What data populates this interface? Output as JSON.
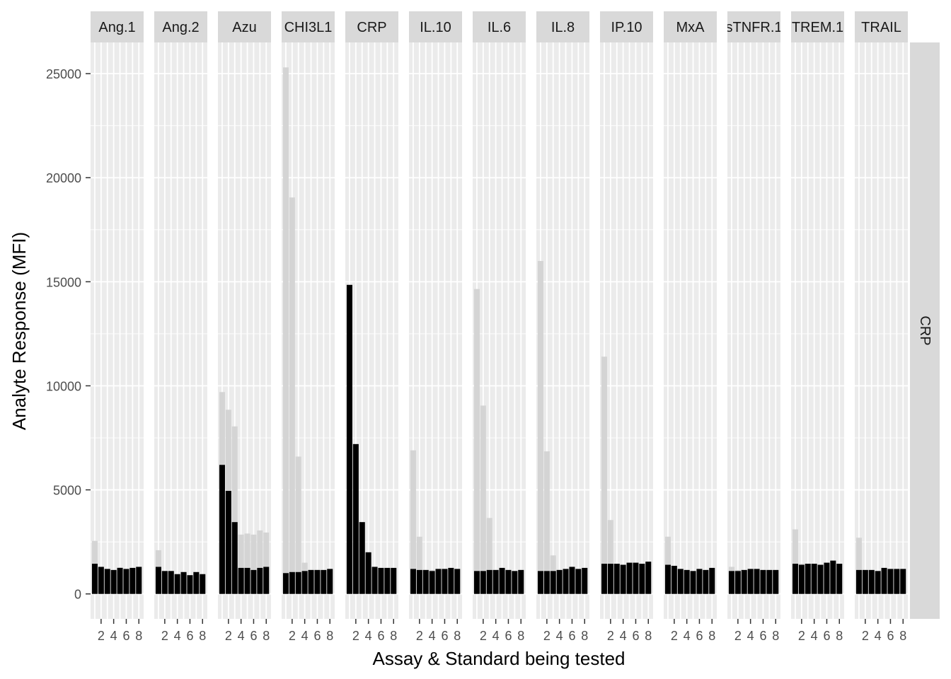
{
  "chart_data": {
    "type": "bar",
    "xlabel": "Assay & Standard being tested",
    "ylabel": "Analyte Response (MFI)",
    "row_strip": "CRP",
    "ylim": [
      -1200,
      26500
    ],
    "y_ticks": [
      0,
      5000,
      10000,
      15000,
      20000,
      25000
    ],
    "y_tick_labels": [
      "0",
      "5000",
      "10000",
      "15000",
      "20000",
      "25000"
    ],
    "x": [
      1,
      2,
      3,
      4,
      5,
      6,
      7,
      8
    ],
    "x_tick_labels": [
      "2",
      "4",
      "6",
      "8"
    ],
    "x_ticks": [
      2,
      4,
      6,
      8
    ],
    "grid": true,
    "colors": {
      "panel_bg": "#ebebeb",
      "grid": "#ffffff",
      "strip_bg": "#d9d9d9",
      "background_bar": "#d4d4d4",
      "foreground_bar": "#000000"
    },
    "panels": [
      {
        "name": "Ang.1",
        "background": [
          2550,
          1250,
          1200,
          1150,
          1280,
          1180,
          1250,
          1300
        ],
        "foreground": [
          1450,
          1300,
          1200,
          1150,
          1250,
          1200,
          1250,
          1300
        ]
      },
      {
        "name": "Ang.2",
        "background": [
          2100,
          1100,
          1100,
          950,
          1050,
          900,
          1050,
          950
        ],
        "foreground": [
          1300,
          1100,
          1100,
          950,
          1050,
          900,
          1050,
          950
        ]
      },
      {
        "name": "Azu",
        "background": [
          9700,
          8850,
          8050,
          2850,
          2900,
          2850,
          3050,
          2950
        ],
        "foreground": [
          6200,
          4950,
          3450,
          1250,
          1250,
          1150,
          1250,
          1300
        ]
      },
      {
        "name": "CHI3L1",
        "background": [
          25300,
          19050,
          6600,
          1500,
          1150,
          1150,
          1150,
          1200
        ],
        "foreground": [
          1000,
          1050,
          1050,
          1100,
          1150,
          1150,
          1150,
          1200
        ]
      },
      {
        "name": "CRP",
        "background": [
          14850,
          7200,
          3450,
          2000,
          1300,
          1250,
          1250,
          1250
        ],
        "foreground": [
          14850,
          7200,
          3450,
          2000,
          1300,
          1250,
          1250,
          1250
        ]
      },
      {
        "name": "IL.10",
        "background": [
          6900,
          2750,
          1150,
          1150,
          1200,
          1200,
          1250,
          1200
        ],
        "foreground": [
          1200,
          1150,
          1150,
          1100,
          1200,
          1200,
          1250,
          1200
        ]
      },
      {
        "name": "IL.6",
        "background": [
          14650,
          9050,
          3650,
          1150,
          1250,
          1150,
          1100,
          1150
        ],
        "foreground": [
          1100,
          1100,
          1150,
          1150,
          1250,
          1150,
          1100,
          1150
        ]
      },
      {
        "name": "IL.8",
        "background": [
          16000,
          6850,
          1850,
          1150,
          1200,
          1300,
          1200,
          1250
        ],
        "foreground": [
          1100,
          1100,
          1100,
          1150,
          1200,
          1300,
          1200,
          1250
        ]
      },
      {
        "name": "IP.10",
        "background": [
          11400,
          3550,
          1450,
          1400,
          1500,
          1500,
          1450,
          1550
        ],
        "foreground": [
          1450,
          1450,
          1450,
          1400,
          1500,
          1500,
          1450,
          1550
        ]
      },
      {
        "name": "MxA",
        "background": [
          2750,
          1350,
          1200,
          1150,
          1100,
          1200,
          1150,
          1250
        ],
        "foreground": [
          1400,
          1350,
          1200,
          1150,
          1100,
          1200,
          1150,
          1250
        ]
      },
      {
        "name": "sTNFR.1",
        "background": [
          1300,
          1150,
          1150,
          1200,
          1200,
          1150,
          1150,
          1150
        ],
        "foreground": [
          1100,
          1100,
          1150,
          1200,
          1200,
          1150,
          1150,
          1150
        ]
      },
      {
        "name": "TREM.1",
        "background": [
          3100,
          1450,
          1450,
          1450,
          1400,
          1500,
          1600,
          1450
        ],
        "foreground": [
          1450,
          1400,
          1450,
          1450,
          1400,
          1500,
          1600,
          1450
        ]
      },
      {
        "name": "TRAIL",
        "background": [
          2700,
          1150,
          1150,
          1100,
          1250,
          1200,
          1200,
          1200
        ],
        "foreground": [
          1150,
          1150,
          1150,
          1100,
          1250,
          1200,
          1200,
          1200
        ]
      }
    ]
  }
}
